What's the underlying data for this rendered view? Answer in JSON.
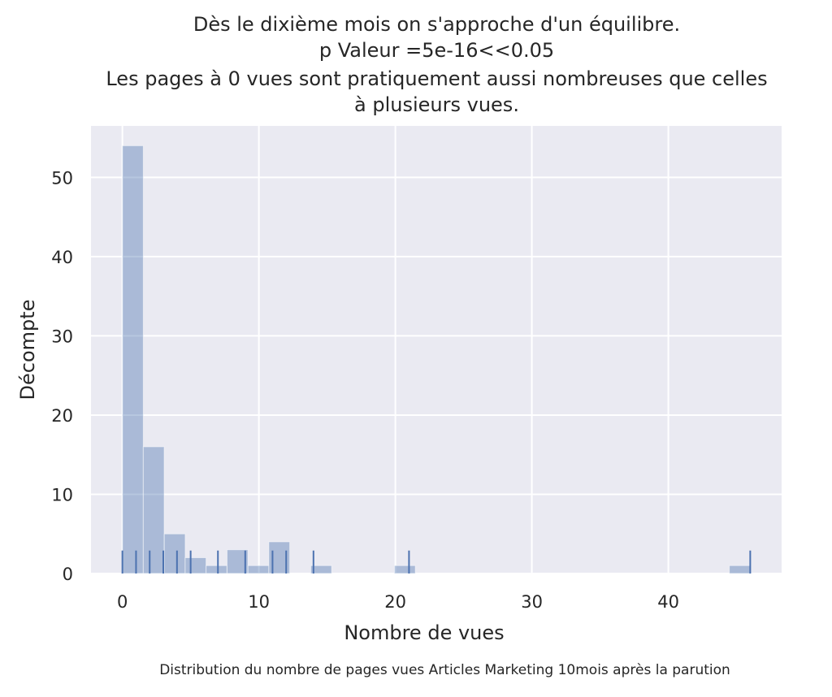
{
  "chart_data": {
    "type": "bar",
    "title_lines": [
      "Dès le dixième mois on s'approche d'un équilibre.",
      "p Valeur =5e-16<<0.05",
      "Les pages à 0 vues sont pratiquement aussi nombreuses que celles",
      "à plusieurs vues."
    ],
    "xlabel": "Nombre de vues",
    "ylabel": "Décompte",
    "caption": "Distribution du nombre de pages vues Articles Marketing 10mois après la parution",
    "xlim": [
      -2.3,
      48.3
    ],
    "ylim": [
      0,
      56.5
    ],
    "xticks": [
      0,
      10,
      20,
      30,
      40
    ],
    "yticks": [
      0,
      10,
      20,
      30,
      40,
      50
    ],
    "bin_width": 1.53,
    "bins": [
      {
        "x": 0,
        "count": 54
      },
      {
        "x": 1.53,
        "count": 16
      },
      {
        "x": 3.07,
        "count": 5
      },
      {
        "x": 4.6,
        "count": 2
      },
      {
        "x": 6.13,
        "count": 1
      },
      {
        "x": 7.67,
        "count": 3
      },
      {
        "x": 9.2,
        "count": 1
      },
      {
        "x": 10.73,
        "count": 4
      },
      {
        "x": 13.8,
        "count": 1
      },
      {
        "x": 19.93,
        "count": 1
      },
      {
        "x": 44.47,
        "count": 1
      }
    ],
    "rug": [
      0,
      1,
      2,
      3,
      4,
      5,
      7,
      9,
      11,
      12,
      14,
      21,
      46
    ],
    "colors": {
      "plot_background": "#eaeaf2",
      "grid": "#ffffff",
      "bar_fill": "#4c72b0",
      "bar_opacity": 0.4,
      "rug": "#4c72b0"
    },
    "grid": true
  }
}
